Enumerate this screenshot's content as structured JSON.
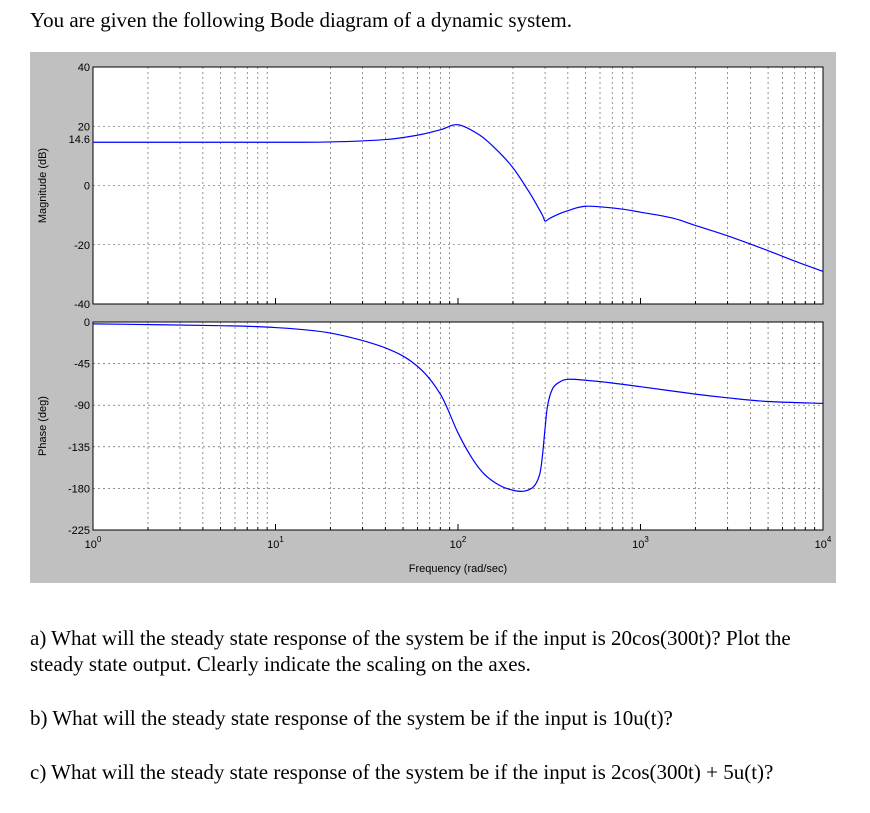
{
  "intro": "You are given the following Bode diagram of a dynamic system.",
  "questions": {
    "a": "a) What will the steady state response of the system be if the input is 20cos(300t)? Plot the steady state output. Clearly indicate the scaling on the axes.",
    "b": "b) What will the steady state response of the system be if the input is 10u(t)?",
    "c": "c) What will the steady state response of the system be if the input is 2cos(300t) + 5u(t)?"
  },
  "chart_data": [
    {
      "type": "line",
      "ylabel": "Magnitude (dB)",
      "xscale": "log",
      "xlim": [
        1,
        10000
      ],
      "ylim": [
        -40,
        40
      ],
      "yticks": [
        "40",
        "20",
        "0",
        "-20",
        "-40"
      ],
      "annotation": "14.6",
      "grid": true,
      "color": "#0000ff",
      "x": [
        1,
        10,
        20,
        40,
        60,
        80,
        100,
        130,
        160,
        200,
        250,
        290,
        300,
        320,
        360,
        400,
        450,
        500,
        600,
        800,
        1000,
        1500,
        2000,
        3000,
        5000,
        7000,
        10000
      ],
      "y": [
        14.6,
        14.6,
        14.7,
        15.5,
        17.0,
        18.8,
        20.5,
        17.2,
        12.5,
        6.0,
        -3.0,
        -10.0,
        -12.0,
        -11.0,
        -9.5,
        -8.5,
        -7.5,
        -7.0,
        -7.2,
        -8.0,
        -9.0,
        -11.0,
        -13.5,
        -17.0,
        -22.0,
        -25.5,
        -29.0
      ]
    },
    {
      "type": "line",
      "ylabel": "Phase (deg)",
      "xscale": "log",
      "xlim": [
        1,
        10000
      ],
      "ylim": [
        -225,
        0
      ],
      "yticks": [
        "0",
        "-45",
        "-90",
        "-135",
        "-180",
        "-225"
      ],
      "xticks": [
        "10^0",
        "10^1",
        "10^2",
        "10^3",
        "10^4"
      ],
      "xlabel": "Frequency (rad/sec)",
      "grid": true,
      "color": "#0000ff",
      "x": [
        1,
        5,
        10,
        20,
        40,
        60,
        80,
        100,
        120,
        140,
        170,
        200,
        230,
        260,
        280,
        290,
        300,
        310,
        330,
        360,
        400,
        500,
        700,
        1000,
        2000,
        3000,
        5000,
        10000
      ],
      "y": [
        -2,
        -4,
        -6,
        -12,
        -28,
        -48,
        -78,
        -120,
        -148,
        -165,
        -177,
        -182,
        -183,
        -178,
        -165,
        -145,
        -115,
        -90,
        -72,
        -65,
        -62,
        -63,
        -66,
        -70,
        -78,
        -82,
        -86,
        -88
      ]
    }
  ]
}
